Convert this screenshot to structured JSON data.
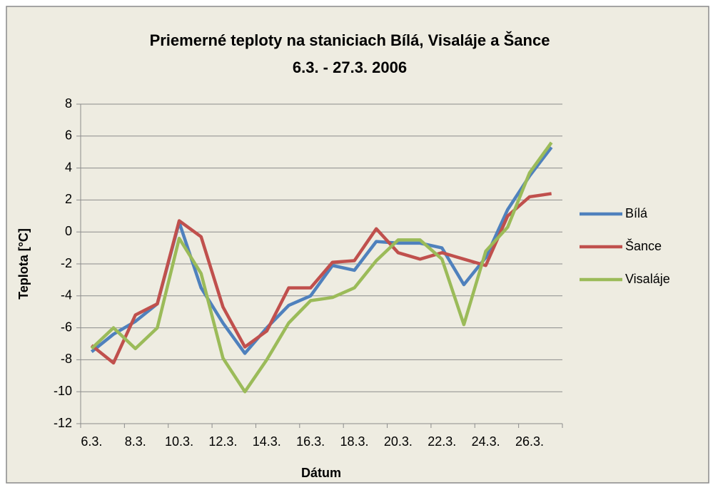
{
  "chart_data": {
    "type": "line",
    "title_lines": [
      "Priemerné teploty na staniciach Bílá, Visaláje a Šance",
      "6.3. - 27.3. 2006"
    ],
    "x_label": "Dátum",
    "y_label": "Teplota [°C]",
    "categories": [
      "6.3.",
      null,
      "8.3.",
      null,
      "10.3.",
      null,
      "12.3.",
      null,
      "14.3.",
      null,
      "16.3.",
      null,
      "18.3.",
      null,
      "20.3.",
      null,
      "22.3.",
      null,
      "24.3.",
      null,
      "26.3.",
      null
    ],
    "series": [
      {
        "name": "Bílá",
        "color": "#4f81bd",
        "values": [
          -7.5,
          -6.4,
          -5.6,
          -4.5,
          0.6,
          -3.5,
          -5.7,
          -7.6,
          -6.0,
          -4.6,
          -4.0,
          -2.1,
          -2.4,
          -0.6,
          -0.7,
          -0.7,
          -1.0,
          -3.3,
          -1.6,
          1.4,
          3.5,
          5.3
        ]
      },
      {
        "name": "Šance",
        "color": "#c0504d",
        "values": [
          -7.1,
          -8.2,
          -5.2,
          -4.5,
          0.7,
          -0.3,
          -4.7,
          -7.2,
          -6.2,
          -3.5,
          -3.5,
          -1.9,
          -1.8,
          0.2,
          -1.3,
          -1.7,
          -1.3,
          -1.7,
          -2.1,
          1.0,
          2.2,
          2.4
        ]
      },
      {
        "name": "Visaláje",
        "color": "#9bbb59",
        "values": [
          -7.3,
          -6.0,
          -7.3,
          -6.0,
          -0.4,
          -2.6,
          -7.9,
          -10.0,
          -8.0,
          -5.7,
          -4.3,
          -4.1,
          -3.5,
          -1.8,
          -0.5,
          -0.5,
          -1.7,
          -5.8,
          -1.2,
          0.3,
          3.7,
          5.6
        ]
      }
    ],
    "ylim": [
      -12,
      8
    ],
    "yticks": [
      -12,
      -10,
      -8,
      -6,
      -4,
      -2,
      0,
      2,
      4,
      6,
      8
    ],
    "grid": true,
    "legend": "right"
  }
}
